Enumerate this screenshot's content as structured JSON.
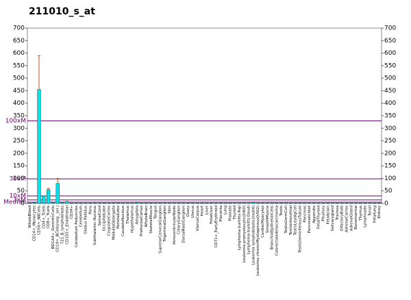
{
  "chart_data": {
    "type": "bar",
    "title": "211010_s_at",
    "categories": [
      "WholeBlood",
      "CD14+_Monocytes",
      "CD56+_NKCells",
      "CD4+_Tcells",
      "CD8+_Tcells",
      "BDCA4+_DentriticCells",
      "CD19+_BCells(neg._sel.)",
      "721_B_lymphoblasts",
      "CD105+_Endothelial",
      "CD34+",
      "Cerebellum Peduncles",
      "Cerebellum",
      "Globus Pallidus",
      "Pons",
      "Subthalamic Nucleus",
      "SpinalCord",
      "OccipitalLobe",
      "CingulateCortex",
      "MedullaOblongata",
      "ParietalLobe",
      "CaudateNucleus",
      "Thalamus",
      "Hypothalamus",
      "Amygdala",
      "PrefrontalCortex",
      "WholeBrain",
      "SkeletalMuscle",
      "Tongue",
      "SuperiorCervicalGanglion",
      "TrigeminalGanglion",
      "Skin",
      "AtrioventricularNode",
      "CiliaryGanglion",
      "DorsalRootGanglion",
      "Ovary",
      "Uterus",
      "UterusCorpus",
      "Heart",
      "Liver",
      "FetalLiver",
      "CD71+_EarlyErythroid",
      "Placenta",
      "Lung",
      "Prostate",
      "Thyroid",
      "Lymphoma burkitts Raji",
      "Leukemia promyelocytic(hl60)",
      "Lymphoma burkitts Daudi",
      "Leukemia lymphoblastic(molt4)",
      "Leukemia chronicMyelogenous(k562)",
      "CardiacMyocytes",
      "SmoothMuscle",
      "BronchialEpithelialCells",
      "Colorectaladenocarcinoma",
      "Testis",
      "TestisGermCell",
      "TestisInterstitial",
      "TestisLeydigCell",
      "TestisSeminiferousTubule",
      "Pancreas",
      "PancreaticIslet",
      "Appendix",
      "FetalThyroid",
      "Pituitary",
      "Fetalbrain",
      "Salivarygland",
      "Trachea",
      "OlfactoryBulb",
      "AdrenalCortex",
      "AdrenalGland",
      "Bonemarrow",
      "Thymus",
      "Lymphnode",
      "Tonsil",
      "Fetallung",
      "Kidney"
    ],
    "values": [
      2,
      3,
      455,
      30,
      55,
      4,
      80,
      3,
      8,
      2,
      2,
      2,
      2,
      2,
      2,
      2,
      2,
      2,
      2,
      2,
      2,
      2,
      2,
      4,
      2,
      2,
      2,
      2,
      2,
      2,
      2,
      2,
      2,
      2,
      2,
      2,
      2,
      2,
      2,
      2,
      2,
      2,
      2,
      2,
      2,
      2,
      2,
      2,
      4,
      2,
      2,
      2,
      2,
      2,
      2,
      2,
      2,
      2,
      2,
      2,
      2,
      2,
      2,
      2,
      2,
      2,
      2,
      2,
      2,
      2,
      2,
      2,
      2,
      2,
      2,
      2
    ],
    "errors": [
      null,
      null,
      135,
      null,
      5,
      null,
      20,
      null,
      6,
      null,
      null,
      null,
      null,
      null,
      null,
      null,
      null,
      null,
      null,
      null,
      null,
      null,
      null,
      null,
      null,
      null,
      null,
      null,
      null,
      null,
      null,
      null,
      null,
      null,
      null,
      null,
      null,
      null,
      null,
      null,
      null,
      null,
      null,
      null,
      null,
      null,
      null,
      null,
      null,
      null,
      null,
      null,
      null,
      null,
      null,
      null,
      null,
      null,
      null,
      null,
      null,
      null,
      null,
      null,
      null,
      null,
      null,
      null,
      null,
      null,
      null,
      null,
      null,
      null,
      null,
      null
    ],
    "color": "#00e5ee",
    "error_color": "#b05a2a",
    "ylim": [
      0,
      700
    ],
    "yticks": [
      0,
      50,
      100,
      150,
      200,
      250,
      300,
      350,
      400,
      450,
      500,
      550,
      600,
      650,
      700
    ],
    "reference_lines": [
      {
        "label": "100xM",
        "value": 330
      },
      {
        "label": "30xM",
        "value": 98
      },
      {
        "label": "10xM",
        "value": 30
      },
      {
        "label": "3xM",
        "value": 14
      },
      {
        "label": "Median",
        "value": 5
      }
    ],
    "reference_color": "#660066"
  }
}
